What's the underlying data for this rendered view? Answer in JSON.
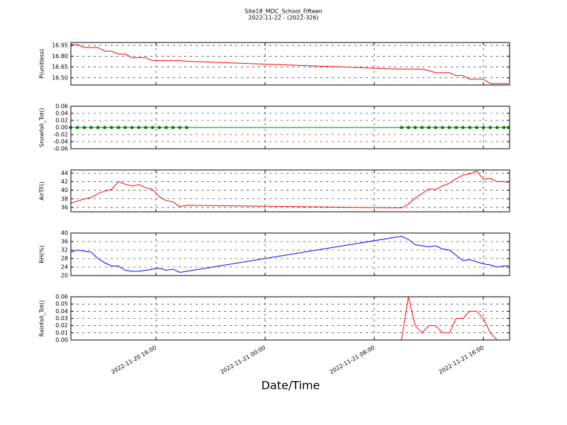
{
  "chart_data": [
    {
      "type": "line",
      "title": "Site18_MDC_School_Fifteen",
      "subtitle": "2022-11-22 - (2022-326)",
      "ylabel": "P(unitless)",
      "color": "#ff0000",
      "grid": true,
      "x": [
        "2022-11-20 09:45",
        "2022-11-20 10:15",
        "2022-11-20 10:45",
        "2022-11-20 11:15",
        "2022-11-20 11:45",
        "2022-11-20 12:15",
        "2022-11-20 12:45",
        "2022-11-20 13:15",
        "2022-11-20 13:45",
        "2022-11-20 14:15",
        "2022-11-20 14:45",
        "2022-11-20 15:15",
        "2022-11-20 15:45",
        "2022-11-20 16:15",
        "2022-11-20 16:45",
        "2022-11-20 17:15",
        "2022-11-20 17:45",
        "2022-11-20 18:15",
        "2022-11-21 10:00",
        "2022-11-21 10:30",
        "2022-11-21 11:00",
        "2022-11-21 11:30",
        "2022-11-21 12:00",
        "2022-11-21 12:30",
        "2022-11-21 13:00",
        "2022-11-21 13:30",
        "2022-11-21 14:00",
        "2022-11-21 14:30",
        "2022-11-21 15:00",
        "2022-11-21 15:30",
        "2022-11-21 16:00",
        "2022-11-21 16:30",
        "2022-11-21 17:00",
        "2022-11-21 17:30",
        "2022-11-21 17:50"
      ],
      "values": [
        16.96,
        16.96,
        16.92,
        16.92,
        16.92,
        16.87,
        16.87,
        16.83,
        16.83,
        16.78,
        16.78,
        16.78,
        16.74,
        16.74,
        16.74,
        16.74,
        16.74,
        16.73,
        16.62,
        16.62,
        16.62,
        16.62,
        16.6,
        16.57,
        16.57,
        16.57,
        16.53,
        16.53,
        16.48,
        16.48,
        16.48,
        16.42,
        16.42,
        16.42,
        16.42
      ],
      "xlim": [
        "2022-11-20 09:46",
        "2022-11-21 17:55"
      ],
      "ylim": [
        16.4,
        16.99
      ],
      "yticks": [
        {
          "value": 16.5,
          "label": "16.50"
        },
        {
          "value": 16.65,
          "label": "16.65"
        },
        {
          "value": 16.8,
          "label": "16.80"
        },
        {
          "value": 16.95,
          "label": "16.95"
        }
      ]
    },
    {
      "type": "line",
      "ylabel": "Snowfall_Tot()",
      "color": "#008000",
      "marker": true,
      "grid": true,
      "x": [
        "2022-11-20 09:45",
        "2022-11-20 10:15",
        "2022-11-20 10:45",
        "2022-11-20 11:15",
        "2022-11-20 11:45",
        "2022-11-20 12:15",
        "2022-11-20 12:45",
        "2022-11-20 13:15",
        "2022-11-20 13:45",
        "2022-11-20 14:15",
        "2022-11-20 14:45",
        "2022-11-20 15:15",
        "2022-11-20 15:45",
        "2022-11-20 16:15",
        "2022-11-20 16:45",
        "2022-11-20 17:15",
        "2022-11-20 17:45",
        "2022-11-20 18:15",
        "2022-11-21 10:00",
        "2022-11-21 10:30",
        "2022-11-21 11:00",
        "2022-11-21 11:30",
        "2022-11-21 12:00",
        "2022-11-21 12:30",
        "2022-11-21 13:00",
        "2022-11-21 13:30",
        "2022-11-21 14:00",
        "2022-11-21 14:30",
        "2022-11-21 15:00",
        "2022-11-21 15:30",
        "2022-11-21 16:00",
        "2022-11-21 16:30",
        "2022-11-21 17:00",
        "2022-11-21 17:30",
        "2022-11-21 17:50"
      ],
      "values": [
        0,
        0,
        0,
        0,
        0,
        0,
        0,
        0,
        0,
        0,
        0,
        0,
        0,
        0,
        0,
        0,
        0,
        0,
        0,
        0,
        0,
        0,
        0,
        0,
        0,
        0,
        0,
        0,
        0,
        0,
        0,
        0,
        0,
        0,
        0
      ],
      "xlim": [
        "2022-11-20 09:46",
        "2022-11-21 17:55"
      ],
      "ylim": [
        -0.06,
        0.06
      ],
      "yticks": [
        -0.06,
        -0.04,
        -0.02,
        {
          "value": 0,
          "label": "0.00"
        },
        0.02,
        0.04,
        0.06
      ]
    },
    {
      "type": "line",
      "ylabel": "AirTF()",
      "color": "#ff0000",
      "grid": true,
      "x": [
        "2022-11-20 09:45",
        "2022-11-20 10:15",
        "2022-11-20 10:45",
        "2022-11-20 11:15",
        "2022-11-20 11:45",
        "2022-11-20 12:15",
        "2022-11-20 12:45",
        "2022-11-20 13:15",
        "2022-11-20 13:45",
        "2022-11-20 14:15",
        "2022-11-20 14:45",
        "2022-11-20 15:15",
        "2022-11-20 15:45",
        "2022-11-20 16:15",
        "2022-11-20 16:45",
        "2022-11-20 17:15",
        "2022-11-20 17:45",
        "2022-11-20 18:15",
        "2022-11-21 10:00",
        "2022-11-21 10:30",
        "2022-11-21 11:00",
        "2022-11-21 11:30",
        "2022-11-21 12:00",
        "2022-11-21 12:30",
        "2022-11-21 13:00",
        "2022-11-21 13:30",
        "2022-11-21 14:00",
        "2022-11-21 14:30",
        "2022-11-21 15:00",
        "2022-11-21 15:30",
        "2022-11-21 16:00",
        "2022-11-21 16:30",
        "2022-11-21 17:00",
        "2022-11-21 17:30",
        "2022-11-21 17:50"
      ],
      "values": [
        37.0,
        37.5,
        38.0,
        38.3,
        39.2,
        39.8,
        40.2,
        42.0,
        41.4,
        41.0,
        41.3,
        40.6,
        40.2,
        38.5,
        37.6,
        37.3,
        36.2,
        36.5,
        35.9,
        36.8,
        38.2,
        39.2,
        40.3,
        40.2,
        41.0,
        41.6,
        42.7,
        43.5,
        43.8,
        44.5,
        42.5,
        42.8,
        42.0,
        42.0,
        41.8
      ],
      "xlim": [
        "2022-11-20 09:46",
        "2022-11-21 17:55"
      ],
      "ylim": [
        35,
        44.7
      ],
      "yticks": [
        36,
        38,
        40,
        42,
        44
      ]
    },
    {
      "type": "line",
      "ylabel": "RH(%)",
      "color": "#0000ff",
      "grid": true,
      "x": [
        "2022-11-20 09:45",
        "2022-11-20 10:15",
        "2022-11-20 10:45",
        "2022-11-20 11:15",
        "2022-11-20 11:45",
        "2022-11-20 12:15",
        "2022-11-20 12:45",
        "2022-11-20 13:15",
        "2022-11-20 13:45",
        "2022-11-20 14:15",
        "2022-11-20 14:45",
        "2022-11-20 15:15",
        "2022-11-20 15:45",
        "2022-11-20 16:15",
        "2022-11-20 16:45",
        "2022-11-20 17:15",
        "2022-11-20 17:45",
        "2022-11-20 18:15",
        "2022-11-21 10:00",
        "2022-11-21 10:30",
        "2022-11-21 11:00",
        "2022-11-21 11:30",
        "2022-11-21 12:00",
        "2022-11-21 12:30",
        "2022-11-21 13:00",
        "2022-11-21 13:30",
        "2022-11-21 14:00",
        "2022-11-21 14:30",
        "2022-11-21 15:00",
        "2022-11-21 15:30",
        "2022-11-21 16:00",
        "2022-11-21 16:30",
        "2022-11-21 17:00",
        "2022-11-21 17:30",
        "2022-11-21 17:50"
      ],
      "values": [
        31.0,
        32.0,
        31.5,
        31.0,
        28.0,
        26.0,
        24.5,
        24.5,
        22.5,
        22.0,
        22.0,
        22.5,
        23.0,
        23.5,
        22.5,
        23.0,
        21.5,
        22.0,
        38.5,
        37.0,
        34.5,
        34.0,
        33.5,
        34.0,
        32.5,
        32.0,
        29.5,
        27.0,
        27.5,
        26.5,
        25.5,
        25.0,
        24.0,
        24.5,
        24.5
      ],
      "xlim": [
        "2022-11-20 09:46",
        "2022-11-21 17:55"
      ],
      "ylim": [
        20,
        40
      ],
      "yticks": [
        20,
        24,
        28,
        32,
        36,
        40
      ]
    },
    {
      "type": "line",
      "ylabel": "Rainfall_Tot()",
      "xlabel": "Date/Time",
      "color": "#ff0000",
      "grid": true,
      "x": [
        "2022-11-20 09:45",
        "2022-11-20 10:15",
        "2022-11-20 10:45",
        "2022-11-20 11:15",
        "2022-11-20 11:45",
        "2022-11-20 12:15",
        "2022-11-20 12:45",
        "2022-11-20 13:15",
        "2022-11-20 13:45",
        "2022-11-20 14:15",
        "2022-11-20 14:45",
        "2022-11-20 15:15",
        "2022-11-20 15:45",
        "2022-11-20 16:15",
        "2022-11-20 16:45",
        "2022-11-20 17:15",
        "2022-11-20 17:45",
        "2022-11-20 18:15",
        "2022-11-21 10:00",
        "2022-11-21 10:30",
        "2022-11-21 11:00",
        "2022-11-21 11:30",
        "2022-11-21 12:00",
        "2022-11-21 12:30",
        "2022-11-21 13:00",
        "2022-11-21 13:30",
        "2022-11-21 14:00",
        "2022-11-21 14:30",
        "2022-11-21 15:00",
        "2022-11-21 15:30",
        "2022-11-21 16:00",
        "2022-11-21 16:30",
        "2022-11-21 17:00",
        "2022-11-21 17:30",
        "2022-11-21 17:50"
      ],
      "values": [
        0,
        0,
        0,
        0,
        0,
        0,
        0,
        0,
        0,
        0,
        0,
        0,
        0,
        0,
        0,
        0,
        0,
        0,
        0,
        0.06,
        0.02,
        0.01,
        0.02,
        0.02,
        0.01,
        0.01,
        0.03,
        0.03,
        0.04,
        0.04,
        0.03,
        0.01,
        0,
        0,
        0
      ],
      "xlim": [
        "2022-11-20 09:46",
        "2022-11-21 17:55"
      ],
      "ylim": [
        0,
        0.06
      ],
      "yticks": [
        {
          "value": 0,
          "label": "0.00"
        },
        0.01,
        0.02,
        0.03,
        0.04,
        0.05,
        0.06
      ],
      "xticks": [
        "2022-11-20 16:00",
        "2022-11-21 00:00",
        "2022-11-21 08:00",
        "2022-11-21 16:00"
      ]
    }
  ]
}
